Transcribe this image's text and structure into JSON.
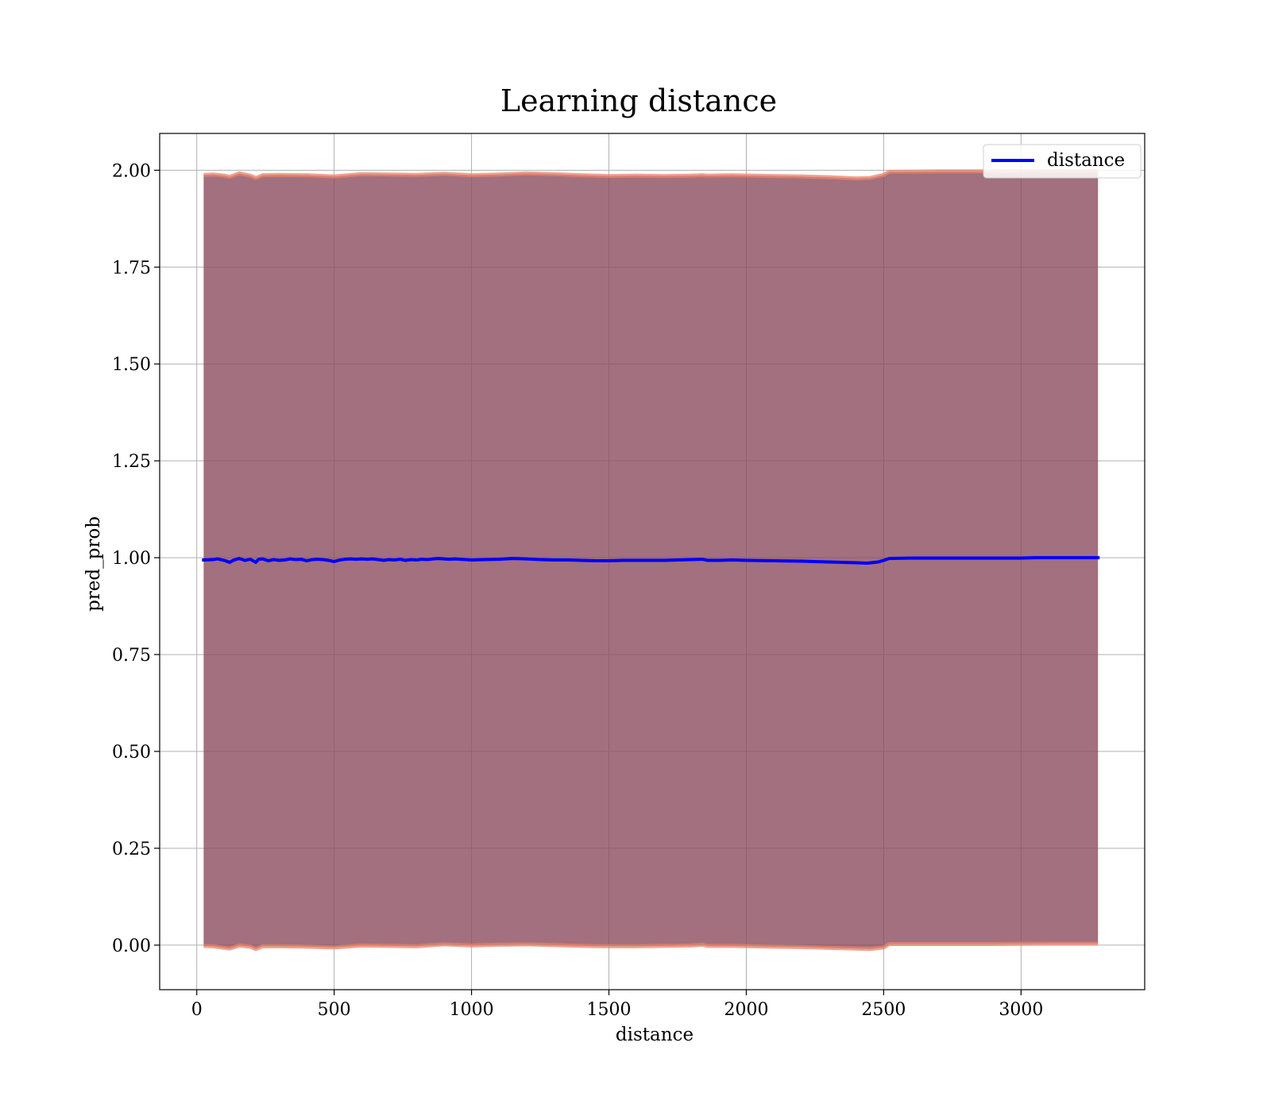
{
  "chart_data": {
    "type": "line",
    "title": "Learning distance",
    "xlabel": "distance",
    "ylabel": "pred_prob",
    "xlim": [
      -135,
      3450
    ],
    "ylim": [
      -0.115,
      2.095
    ],
    "xticks": [
      0,
      500,
      1000,
      1500,
      2000,
      2500,
      3000
    ],
    "xtick_labels": [
      "0",
      "500",
      "1000",
      "1500",
      "2000",
      "2500",
      "3000"
    ],
    "yticks": [
      0.0,
      0.25,
      0.5,
      0.75,
      1.0,
      1.25,
      1.5,
      1.75,
      2.0
    ],
    "ytick_labels": [
      "0.00",
      "0.25",
      "0.50",
      "0.75",
      "1.00",
      "1.25",
      "1.50",
      "1.75",
      "2.00"
    ],
    "grid": true,
    "legend": {
      "position": "top-right",
      "entries": [
        {
          "label": "distance",
          "color": "#0000ff"
        }
      ]
    },
    "colors": {
      "line": "#0000ff",
      "band_fill": "#8b4c5e",
      "band_edge": "#e8836a",
      "grid": "#b0b0b0"
    },
    "series": [
      {
        "name": "distance",
        "x": [
          25,
          60,
          75,
          100,
          120,
          135,
          155,
          175,
          195,
          215,
          225,
          240,
          260,
          280,
          300,
          320,
          340,
          360,
          380,
          400,
          420,
          440,
          460,
          480,
          500,
          520,
          540,
          560,
          580,
          600,
          620,
          640,
          660,
          680,
          700,
          720,
          740,
          760,
          780,
          800,
          820,
          840,
          860,
          880,
          900,
          920,
          940,
          960,
          980,
          1000,
          1050,
          1100,
          1150,
          1200,
          1250,
          1300,
          1350,
          1400,
          1450,
          1500,
          1550,
          1600,
          1650,
          1700,
          1750,
          1800,
          1840,
          1860,
          1900,
          1950,
          2000,
          2100,
          2200,
          2300,
          2400,
          2440,
          2480,
          2500,
          2520,
          2600,
          2700,
          2800,
          2900,
          3000,
          3050,
          3100,
          3200,
          3280
        ],
        "y": [
          0.994,
          0.995,
          0.997,
          0.993,
          0.988,
          0.994,
          0.998,
          0.993,
          0.996,
          0.988,
          0.996,
          0.997,
          0.992,
          0.995,
          0.993,
          0.994,
          0.997,
          0.995,
          0.996,
          0.992,
          0.995,
          0.996,
          0.995,
          0.993,
          0.99,
          0.994,
          0.996,
          0.997,
          0.996,
          0.997,
          0.996,
          0.997,
          0.995,
          0.993,
          0.995,
          0.994,
          0.996,
          0.993,
          0.995,
          0.994,
          0.996,
          0.995,
          0.997,
          0.998,
          0.997,
          0.996,
          0.997,
          0.996,
          0.995,
          0.994,
          0.995,
          0.996,
          0.998,
          0.997,
          0.995,
          0.994,
          0.994,
          0.993,
          0.992,
          0.992,
          0.993,
          0.993,
          0.993,
          0.993,
          0.994,
          0.995,
          0.996,
          0.993,
          0.993,
          0.994,
          0.993,
          0.992,
          0.991,
          0.989,
          0.987,
          0.986,
          0.989,
          0.993,
          0.998,
          0.999,
          0.999,
          0.999,
          0.999,
          0.999,
          1.0,
          1.0,
          1.0,
          1.0
        ]
      }
    ],
    "band": {
      "x": [
        25,
        60,
        100,
        120,
        155,
        195,
        215,
        240,
        300,
        400,
        500,
        600,
        700,
        800,
        900,
        1000,
        1100,
        1200,
        1300,
        1400,
        1500,
        1600,
        1700,
        1800,
        1840,
        1860,
        1950,
        2100,
        2200,
        2300,
        2400,
        2450,
        2500,
        2520,
        2700,
        2900,
        3100,
        3280
      ],
      "upper": [
        1.988,
        1.989,
        1.986,
        1.983,
        1.992,
        1.986,
        1.98,
        1.987,
        1.988,
        1.987,
        1.984,
        1.99,
        1.989,
        1.988,
        1.991,
        1.987,
        1.989,
        1.992,
        1.99,
        1.987,
        1.985,
        1.986,
        1.985,
        1.986,
        1.987,
        1.986,
        1.987,
        1.985,
        1.984,
        1.982,
        1.979,
        1.98,
        1.988,
        1.996,
        1.997,
        1.997,
        1.998,
        1.998
      ],
      "lower": [
        -0.002,
        -0.003,
        -0.007,
        -0.009,
        -0.001,
        -0.004,
        -0.01,
        -0.003,
        -0.003,
        -0.004,
        -0.006,
        -0.001,
        -0.002,
        -0.003,
        0.002,
        -0.001,
        0.001,
        0.002,
        0.0,
        -0.002,
        -0.003,
        -0.003,
        -0.002,
        -0.001,
        0.001,
        -0.002,
        -0.002,
        -0.004,
        -0.005,
        -0.007,
        -0.009,
        -0.01,
        -0.006,
        0.003,
        0.003,
        0.003,
        0.004,
        0.004
      ]
    }
  }
}
